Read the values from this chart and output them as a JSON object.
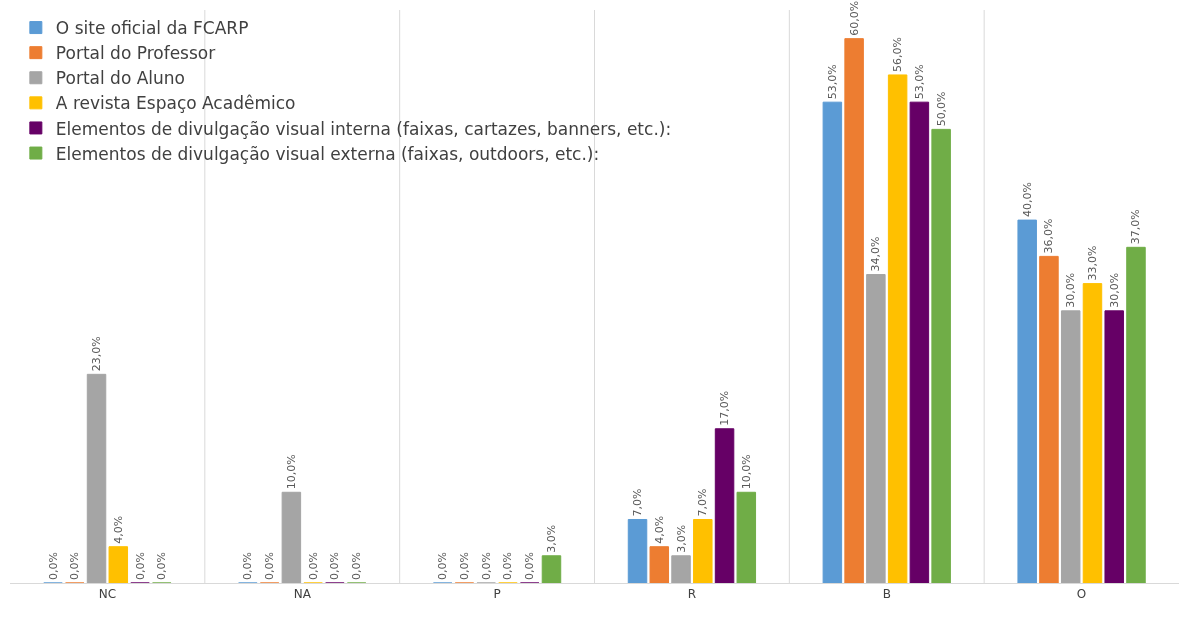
{
  "chart_data": {
    "type": "bar",
    "categories": [
      "NC",
      "NA",
      "P",
      "R",
      "B",
      "O"
    ],
    "series": [
      {
        "name": "O site oficial da FCARP",
        "color": "#5b9bd5",
        "values": [
          0,
          0,
          0,
          7,
          53,
          40
        ],
        "value_labels": [
          "0,0%",
          "0,0%",
          "0,0%",
          "7,0%",
          "53,0%",
          "40,0%"
        ]
      },
      {
        "name": "Portal do Professor",
        "color": "#ed7d31",
        "values": [
          0,
          0,
          0,
          4,
          60,
          36
        ],
        "value_labels": [
          "0,0%",
          "0,0%",
          "0,0%",
          "4,0%",
          "60,0%",
          "36,0%"
        ]
      },
      {
        "name": "Portal do Aluno",
        "color": "#a5a5a5",
        "values": [
          23,
          10,
          0,
          3,
          34,
          30
        ],
        "value_labels": [
          "23,0%",
          "10,0%",
          "0,0%",
          "3,0%",
          "34,0%",
          "30,0%"
        ]
      },
      {
        "name": "A revista Espaço Acadêmico",
        "color": "#ffc000",
        "values": [
          4,
          0,
          0,
          7,
          56,
          33
        ],
        "value_labels": [
          "4,0%",
          "0,0%",
          "0,0%",
          "7,0%",
          "56,0%",
          "33,0%"
        ]
      },
      {
        "name": "Elementos de divulgação visual interna (faixas, cartazes, banners, etc.):",
        "color": "#660066",
        "values": [
          0,
          0,
          0,
          17,
          53,
          30
        ],
        "value_labels": [
          "0,0%",
          "0,0%",
          "0,0%",
          "17,0%",
          "53,0%",
          "30,0%"
        ]
      },
      {
        "name": "Elementos de divulgação visual externa (faixas, outdoors, etc.):",
        "color": "#70ad47",
        "values": [
          0,
          0,
          3,
          10,
          50,
          37
        ],
        "value_labels": [
          "0,0%",
          "0,0%",
          "3,0%",
          "10,0%",
          "50,0%",
          "37,0%"
        ]
      }
    ],
    "legend": "top left",
    "grid": false
  }
}
